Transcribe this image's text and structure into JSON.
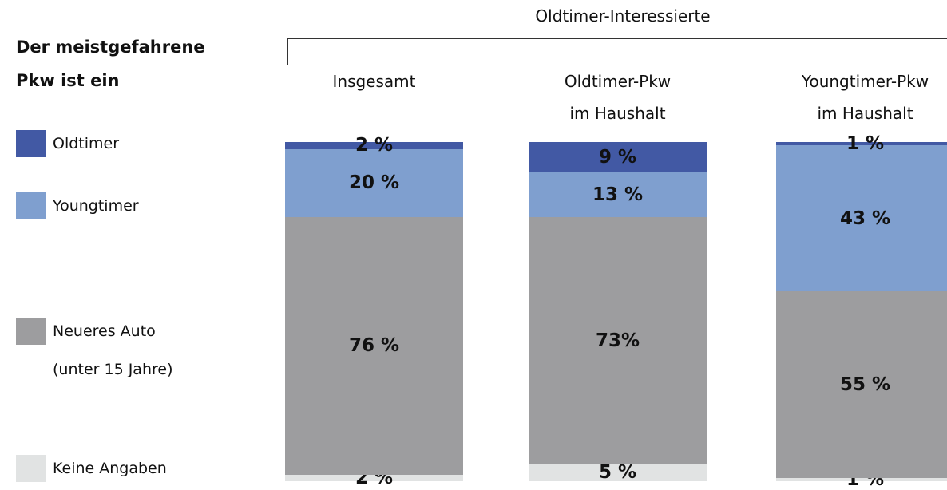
{
  "chart_data": {
    "type": "stacked_bar",
    "title": "Der meistgefahrene\nPkw ist ein",
    "group_label": "Oldtimer-Interessierte",
    "categories": [
      "Insgesamt",
      "Oldtimer-Pkw\nim Haushalt",
      "Youngtimer-Pkw\nim Haushalt"
    ],
    "ylim": [
      0,
      100
    ],
    "series": [
      {
        "name": "Keine Angaben",
        "color": "#e1e3e3",
        "values": [
          2,
          5,
          1
        ],
        "value_labels": [
          "2 %",
          "5 %",
          "1 %"
        ]
      },
      {
        "name": "Neueres Auto\n(unter 15 Jahre)",
        "color": "#9d9d9f",
        "values": [
          76,
          73,
          55
        ],
        "value_labels": [
          "76 %",
          "73%",
          "55 %"
        ]
      },
      {
        "name": "Youngtimer",
        "color": "#7f9fcf",
        "values": [
          20,
          13,
          43
        ],
        "value_labels": [
          "20 %",
          "13 %",
          "43 %"
        ]
      },
      {
        "name": "Oldtimer",
        "color": "#4259a4",
        "values": [
          2,
          9,
          1
        ],
        "value_labels": [
          "2 %",
          "9 %",
          "1 %"
        ]
      }
    ]
  }
}
